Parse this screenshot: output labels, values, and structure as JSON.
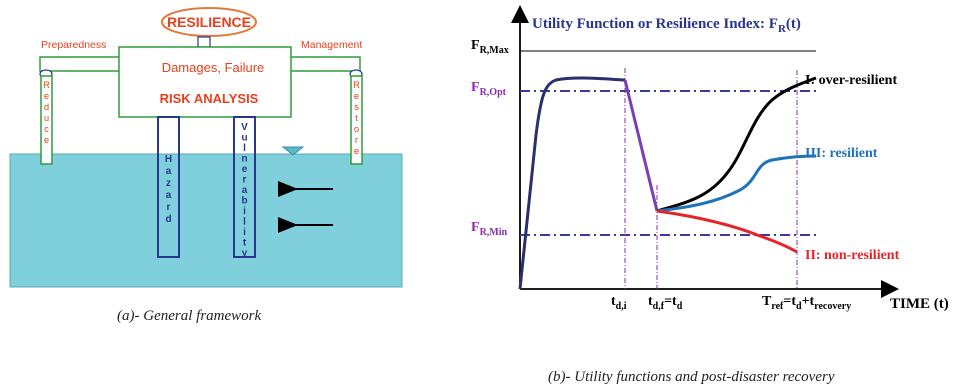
{
  "left_panel": {
    "resilience_label": "RESILIENCE",
    "preparedness_label": "Preparedness",
    "management_label": "Management",
    "damages_label": "Damages, Failure",
    "risk_analysis_label": "RISK ANALYSIS",
    "reduce_label": "Reduce",
    "restore_label": "Restore",
    "hazard_label": "Hazard",
    "vulnerability_label": "Vulnerability",
    "caption_prefix": "(a)",
    "caption_text": "- General framework",
    "colors": {
      "green": "#2d9e3a",
      "red": "#e8401c",
      "blue": "#2a3590",
      "water": "#7fcfdc",
      "orange": "#e07a3a"
    }
  },
  "right_panel": {
    "title_main": "Utility Function or Resilience Index: F",
    "title_sub": "R",
    "title_tail": "(t)",
    "f_max": {
      "main": "F",
      "sub": "R,Max"
    },
    "f_opt": {
      "main": "F",
      "sub": "R,Opt"
    },
    "f_min": {
      "main": "F",
      "sub": "R,Min"
    },
    "t_di": {
      "main": "t",
      "sub": "d,i"
    },
    "t_df": {
      "main": "t",
      "sub": "d,f",
      "mid": "=t",
      "sub2": "d"
    },
    "t_ref": {
      "main": "T",
      "sub": "ref",
      "mid": "=t",
      "sub2": "d",
      "plus": "+t",
      "sub3": "recovery"
    },
    "time_label": "TIME (t)",
    "caption_prefix": "(b)",
    "caption_text": "- Utility functions and post-disaster recovery",
    "colors": {
      "over": "#000000",
      "resilient": "#1f74b8",
      "non": "#e52329",
      "line": "#2a2f6e",
      "drop": "#7b3fb5",
      "guide": "#8a2bb0",
      "dash": "#3a3aa0"
    }
  },
  "chart_data": {
    "type": "line",
    "xlabel": "TIME (t)",
    "ylabel": "Utility Function or Resilience Index: FR(t)",
    "series": [
      {
        "name": "I: over-resilient",
        "color": "#000000"
      },
      {
        "name": "III: resilient",
        "color": "#1f74b8"
      },
      {
        "name": "II: non-resilient",
        "color": "#e52329"
      }
    ],
    "y_reference_lines": [
      "FR,Max",
      "FR,Opt",
      "FR,Min"
    ],
    "x_markers": [
      "td,i",
      "td,f=td",
      "Tref=td+trecovery"
    ]
  }
}
